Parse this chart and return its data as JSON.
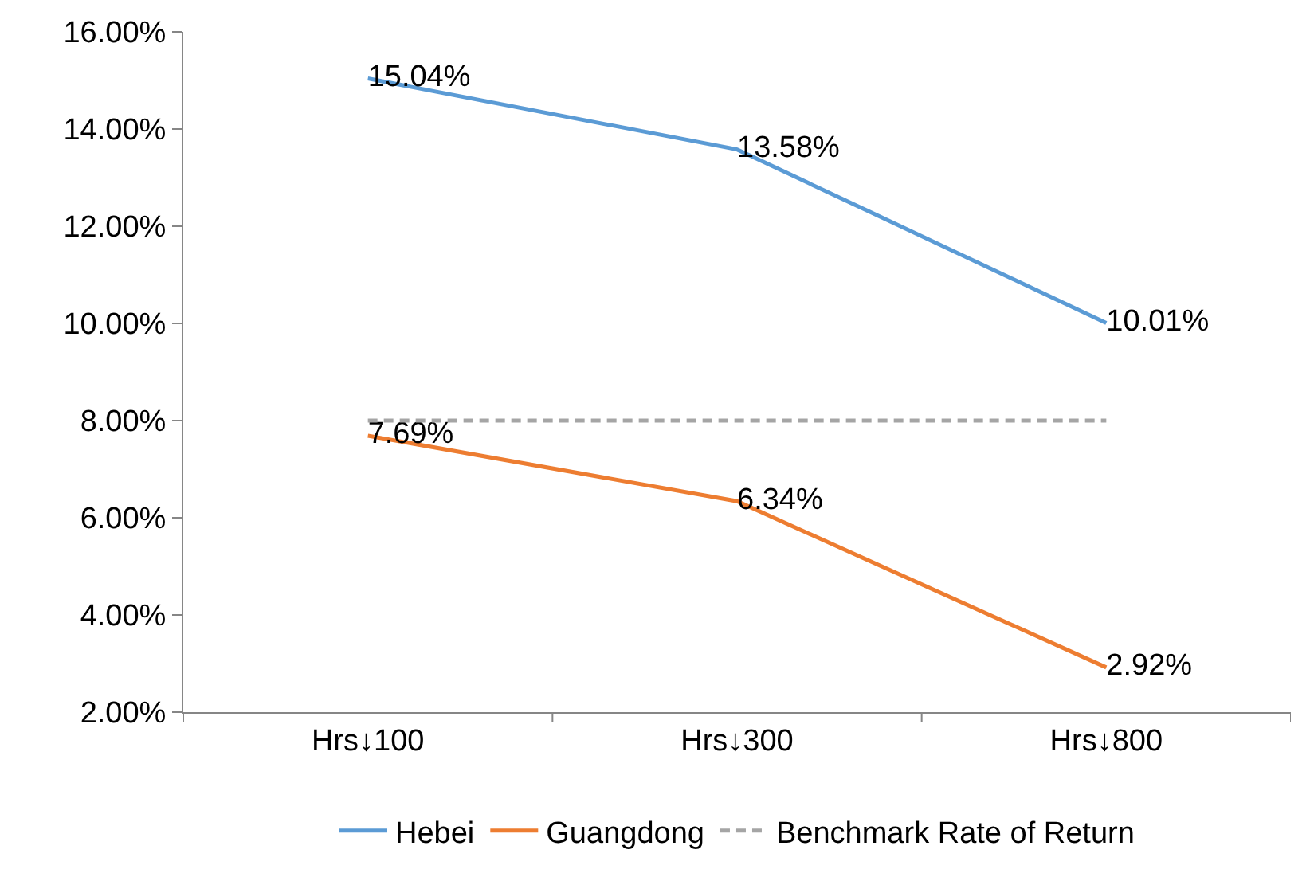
{
  "chart_data": {
    "type": "line",
    "categories": [
      "Hrs↓100",
      "Hrs↓300",
      "Hrs↓800"
    ],
    "series": [
      {
        "name": "Hebei",
        "color": "#5b9bd5",
        "values": [
          15.04,
          13.58,
          10.01
        ],
        "value_labels": [
          "15.04%",
          "13.58%",
          "10.01%"
        ]
      },
      {
        "name": "Guangdong",
        "color": "#ed7d31",
        "values": [
          7.69,
          6.34,
          2.92
        ],
        "value_labels": [
          "7.69%",
          "6.34%",
          "2.92%"
        ]
      },
      {
        "name": "Benchmark Rate of Return",
        "color": "#a5a5a5",
        "values": [
          8,
          8,
          8
        ],
        "line_style": "dashed"
      }
    ],
    "ylim": [
      2,
      16
    ],
    "yticks": [
      {
        "value": 2,
        "label": "2.00%"
      },
      {
        "value": 4,
        "label": "4.00%"
      },
      {
        "value": 6,
        "label": "6.00%"
      },
      {
        "value": 8,
        "label": "8.00%"
      },
      {
        "value": 10,
        "label": "10.00%"
      },
      {
        "value": 12,
        "label": "12.00%"
      },
      {
        "value": 14,
        "label": "14.00%"
      },
      {
        "value": 16,
        "label": "16.00%"
      }
    ],
    "grid": false,
    "legend": "bottom",
    "marker": "none"
  }
}
